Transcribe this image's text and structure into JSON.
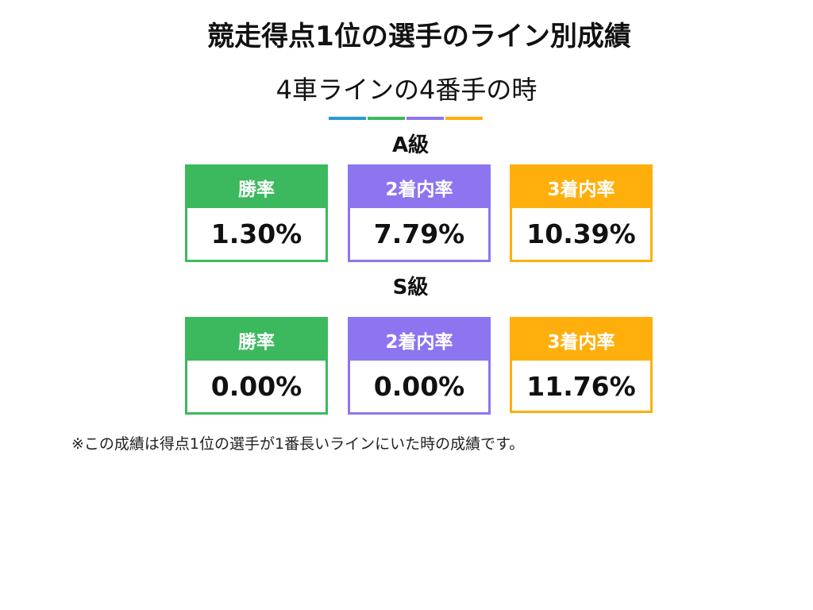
{
  "title": "競走得点1位の選手のライン別成績",
  "subtitle": "4車ラインの4番手の時",
  "colors": {
    "blue": "#2a9ad6",
    "green": "#3cb95e",
    "purple": "#8e75f0",
    "orange": "#ffaf0c"
  },
  "grades": [
    {
      "label": "A級",
      "stats": [
        {
          "label": "勝率",
          "value": "1.30%"
        },
        {
          "label": "2着内率",
          "value": "7.79%"
        },
        {
          "label": "3着内率",
          "value": "10.39%"
        }
      ]
    },
    {
      "label": "S級",
      "stats": [
        {
          "label": "勝率",
          "value": "0.00%"
        },
        {
          "label": "2着内率",
          "value": "0.00%"
        },
        {
          "label": "3着内率",
          "value": "11.76%"
        }
      ]
    }
  ],
  "note": "※この成績は得点1位の選手が1番長いラインにいた時の成績です。"
}
